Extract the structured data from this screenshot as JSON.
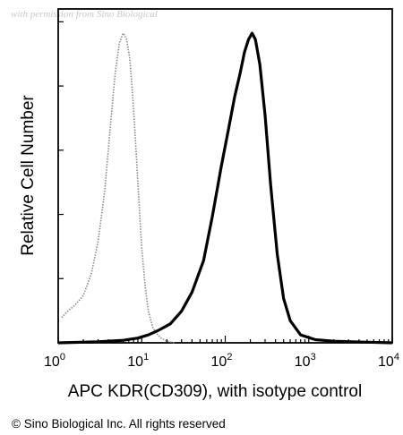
{
  "watermark": "with permission from Sino Biological",
  "footer": "© Sino Biological Inc. All rights reserved",
  "chart_data": {
    "type": "line",
    "xlabel": "APC KDR(CD309), with isotype control",
    "ylabel": "Relative Cell Number",
    "xscale": "log",
    "xlim": [
      1,
      10000
    ],
    "ylim": [
      0,
      100
    ],
    "x_ticks": [
      {
        "base": "10",
        "exp": "0"
      },
      {
        "base": "10",
        "exp": "1"
      },
      {
        "base": "10",
        "exp": "2"
      },
      {
        "base": "10",
        "exp": "3"
      },
      {
        "base": "10",
        "exp": "4"
      }
    ],
    "grid": false,
    "legend": "none",
    "series": [
      {
        "style": "dotted-gray",
        "color": "#888888",
        "x": [
          1.1,
          1.3,
          1.6,
          2,
          2.5,
          3,
          3.6,
          4.2,
          4.8,
          5.4,
          6,
          6.6,
          7.2,
          7.8,
          8.5,
          9.2,
          10,
          11,
          12,
          13.5,
          15,
          17,
          20,
          25
        ],
        "y": [
          8,
          10,
          12,
          15,
          22,
          32,
          48,
          68,
          85,
          95,
          98,
          96,
          90,
          78,
          62,
          46,
          30,
          18,
          10,
          5,
          3,
          1.5,
          0.5,
          0
        ]
      },
      {
        "style": "solid-black",
        "color": "#000000",
        "x": [
          1.0,
          3,
          6,
          9,
          12,
          16,
          22,
          30,
          40,
          55,
          70,
          90,
          110,
          130,
          150,
          170,
          190,
          210,
          230,
          260,
          300,
          350,
          420,
          500,
          600,
          800,
          1200,
          2000,
          5000,
          10000
        ],
        "y": [
          0,
          0.3,
          0.8,
          1.5,
          2.5,
          4,
          6,
          10,
          16,
          26,
          40,
          56,
          68,
          78,
          85,
          92,
          96,
          98,
          96,
          88,
          72,
          50,
          28,
          14,
          7,
          2.5,
          1,
          0.5,
          0.2,
          0
        ]
      }
    ]
  }
}
